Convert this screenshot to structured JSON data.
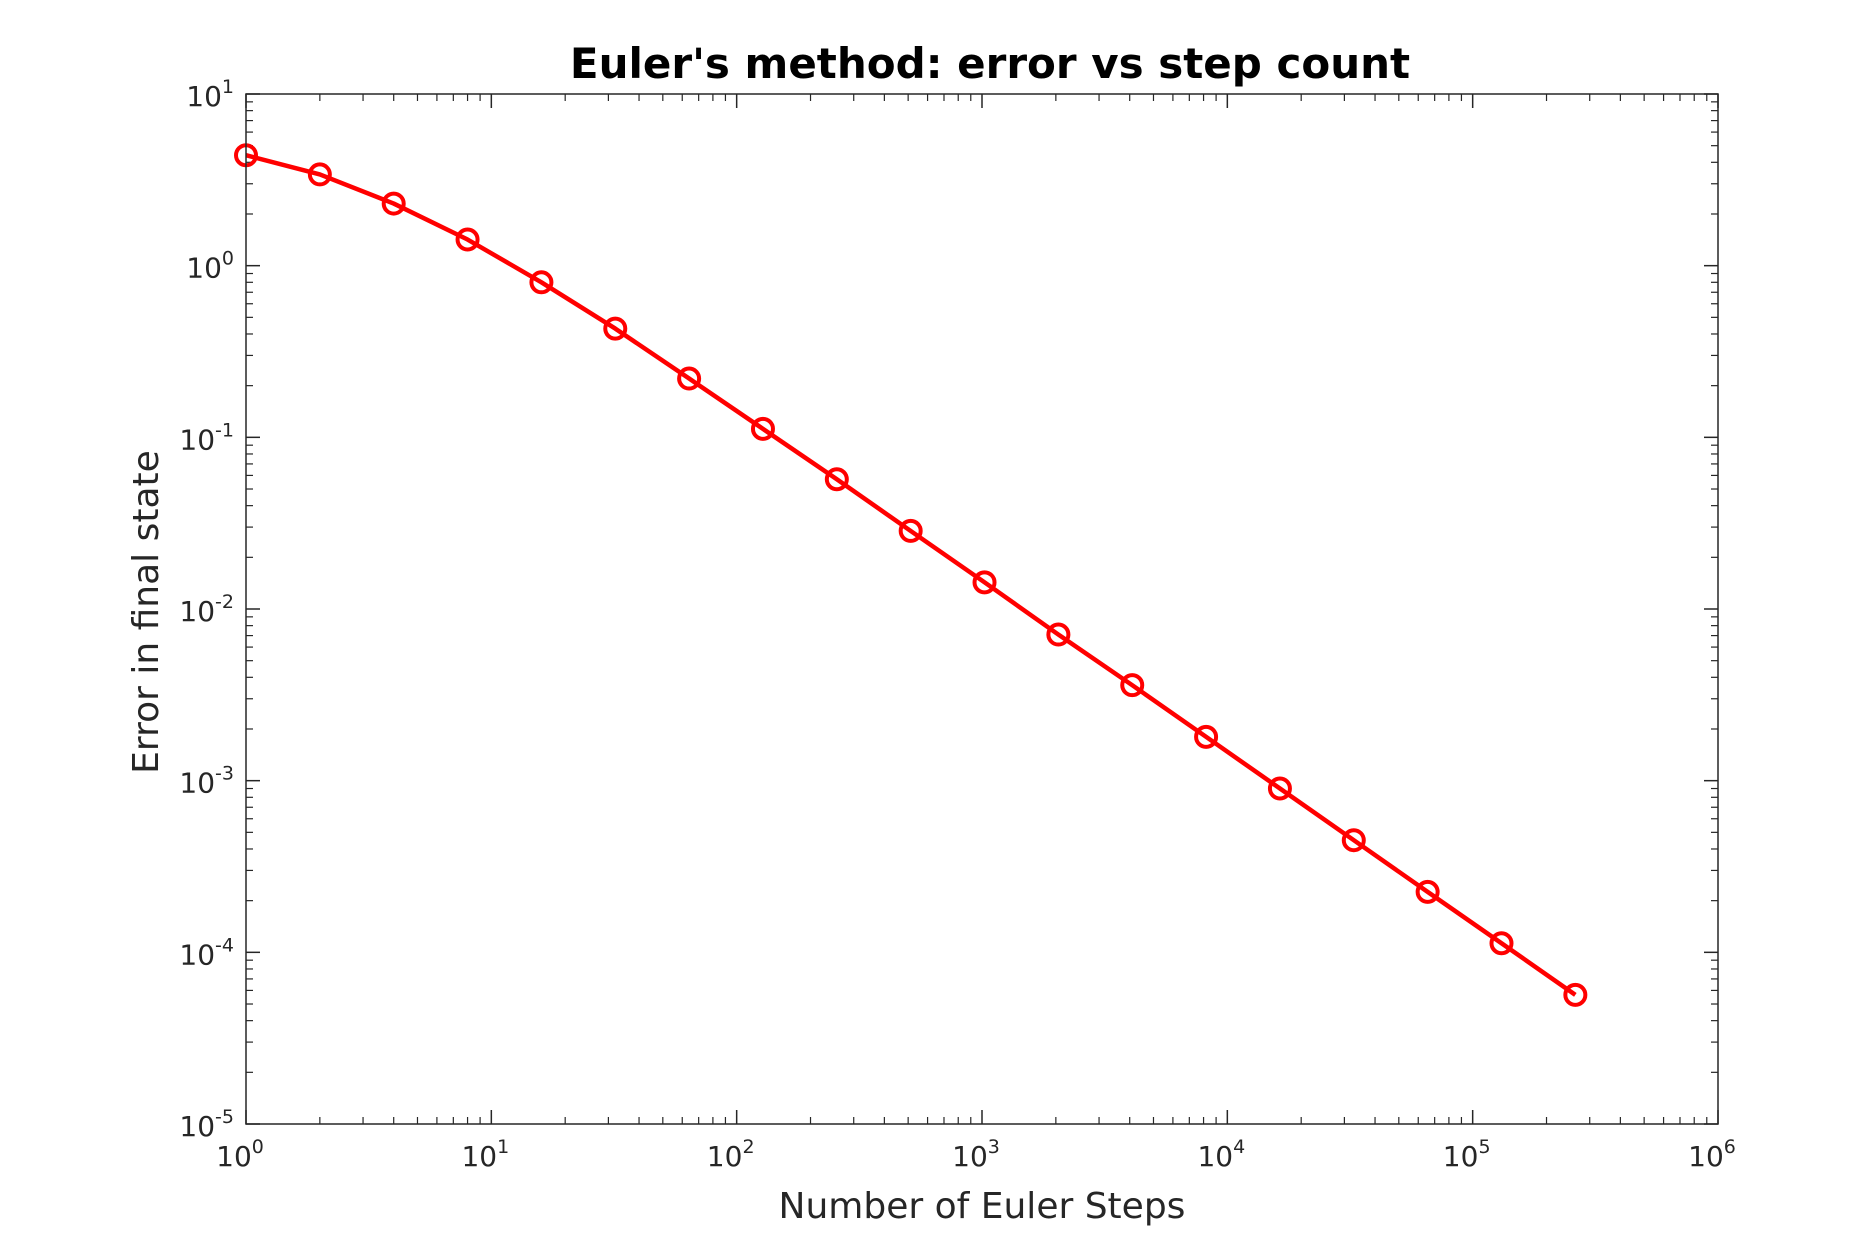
{
  "chart_data": {
    "type": "line",
    "title": "Euler's method: error vs step count",
    "xlabel": "Number of Euler Steps",
    "ylabel": "Error in final state",
    "x_scale": "log",
    "y_scale": "log",
    "xlim": [
      1,
      1000000
    ],
    "ylim": [
      1e-05,
      10
    ],
    "x_ticks": [
      {
        "base": "10",
        "exp": "0",
        "value": 1
      },
      {
        "base": "10",
        "exp": "1",
        "value": 10
      },
      {
        "base": "10",
        "exp": "2",
        "value": 100
      },
      {
        "base": "10",
        "exp": "3",
        "value": 1000
      },
      {
        "base": "10",
        "exp": "4",
        "value": 10000
      },
      {
        "base": "10",
        "exp": "5",
        "value": 100000
      },
      {
        "base": "10",
        "exp": "6",
        "value": 1000000
      }
    ],
    "y_ticks": [
      {
        "base": "10",
        "exp": "1",
        "value": 10
      },
      {
        "base": "10",
        "exp": "0",
        "value": 1
      },
      {
        "base": "10",
        "exp": "-1",
        "value": 0.1
      },
      {
        "base": "10",
        "exp": "-2",
        "value": 0.01
      },
      {
        "base": "10",
        "exp": "-3",
        "value": 0.001
      },
      {
        "base": "10",
        "exp": "-4",
        "value": 0.0001
      },
      {
        "base": "10",
        "exp": "-5",
        "value": 1e-05
      }
    ],
    "grid": false,
    "series": [
      {
        "color": "#ff0000",
        "marker": "circle",
        "x": [
          1,
          2,
          4,
          8,
          16,
          32,
          64,
          128,
          256,
          512,
          1024,
          2048,
          4096,
          8192,
          16384,
          32768,
          65536,
          131072,
          262144
        ],
        "y": [
          4.4,
          3.4,
          2.3,
          1.42,
          0.8,
          0.43,
          0.22,
          0.112,
          0.057,
          0.0285,
          0.0143,
          0.0071,
          0.0036,
          0.0018,
          0.0009,
          0.00045,
          0.000225,
          0.000113,
          5.65e-05
        ]
      }
    ]
  }
}
